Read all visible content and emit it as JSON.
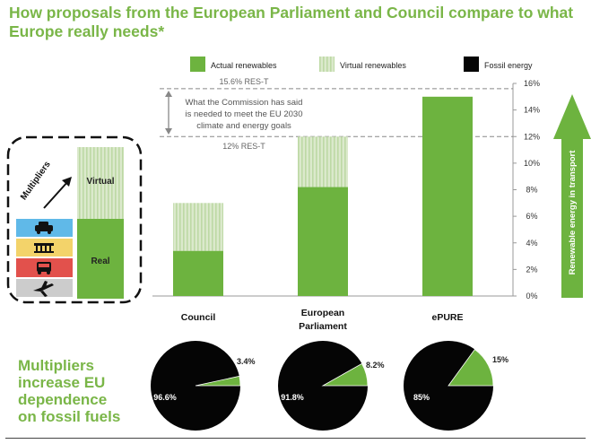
{
  "title": "How proposals from the European Parliament and Council compare to what Europe really needs*",
  "colors": {
    "green": "#6db33f",
    "virtual": "#dbe9cc",
    "fossil": "#050505",
    "title": "#7ab648",
    "grey": "#666666"
  },
  "legend": {
    "actual": "Actual renewables",
    "virtual": "Virtual renewables",
    "fossil": "Fossil energy"
  },
  "annotation": {
    "top_label": "15.6% RES-T",
    "bottom_label": "12% RES-T",
    "text": [
      "What the Commission has said",
      "is needed to meet the EU 2030",
      "climate and energy goals"
    ]
  },
  "right_arrow_label": "Renewable energy in transport",
  "inset": {
    "multipliers_label": "Multipliers",
    "virtual_label": "Virtual",
    "real_label": "Real",
    "icons": [
      "car-icon",
      "train-icon",
      "bus-icon",
      "plane-icon"
    ]
  },
  "multipliers_text": [
    "Multipliers",
    "increase EU",
    "dependence",
    "on fossil fuels"
  ],
  "chart_data": [
    {
      "type": "bar",
      "stacked": true,
      "categories": [
        [
          "Council"
        ],
        [
          "European",
          "Parliament"
        ],
        [
          "ePURE"
        ]
      ],
      "series": [
        {
          "name": "Actual renewables",
          "values": [
            3.4,
            8.2,
            15
          ]
        },
        {
          "name": "Virtual renewables",
          "values": [
            3.6,
            3.8,
            0
          ]
        }
      ],
      "ylim": [
        0,
        16
      ],
      "yticks": [
        0,
        2,
        4,
        6,
        8,
        10,
        12,
        14,
        16
      ],
      "ytick_labels": [
        "0%",
        "2%",
        "4%",
        "6%",
        "8%",
        "10%",
        "12%",
        "14%",
        "16%"
      ],
      "reference_lines": [
        15.6,
        12
      ],
      "grid": false,
      "legend_position": "top"
    },
    {
      "type": "pie",
      "slices": [
        {
          "label": "96.6%",
          "value": 96.6
        },
        {
          "label": "3.4%",
          "value": 3.4
        }
      ]
    },
    {
      "type": "pie",
      "slices": [
        {
          "label": "91.8%",
          "value": 91.8
        },
        {
          "label": "8.2%",
          "value": 8.2
        }
      ]
    },
    {
      "type": "pie",
      "slices": [
        {
          "label": "85%",
          "value": 85
        },
        {
          "label": "15%",
          "value": 15
        }
      ]
    }
  ]
}
